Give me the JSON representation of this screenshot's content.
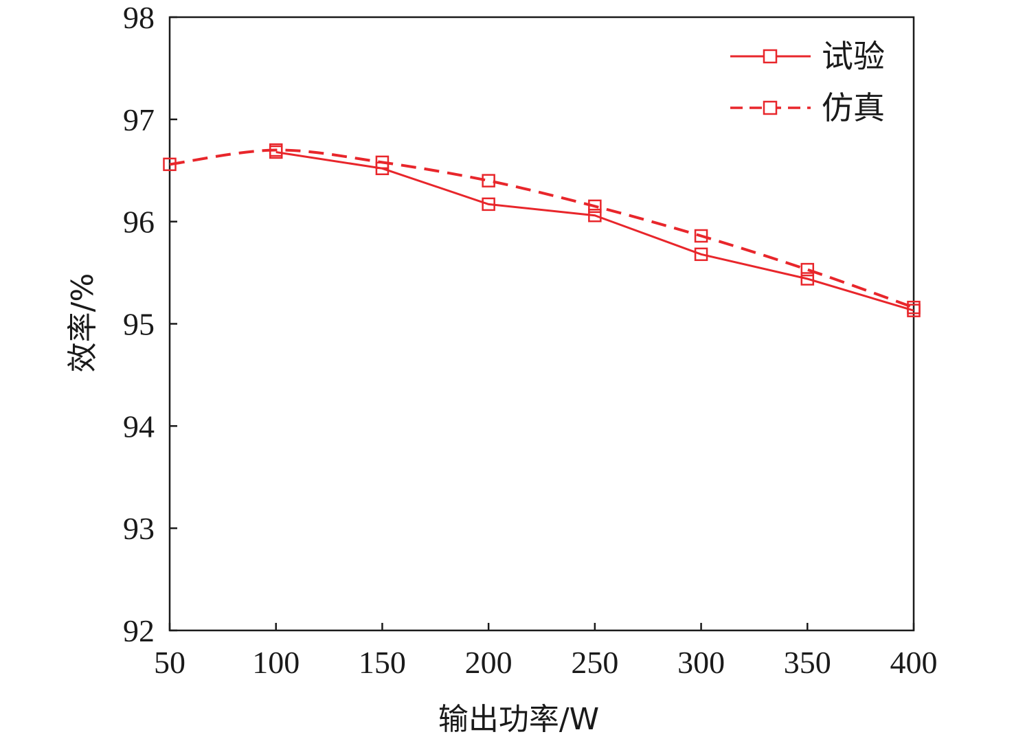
{
  "chart_data": {
    "type": "line",
    "title": "",
    "xlabel": "输出功率/W",
    "ylabel": "效率/%",
    "xlim": [
      50,
      400
    ],
    "ylim": [
      92,
      98
    ],
    "xticks": [
      50,
      100,
      150,
      200,
      250,
      300,
      350,
      400
    ],
    "yticks": [
      92,
      93,
      94,
      95,
      96,
      97,
      98
    ],
    "grid": false,
    "legend_position": "top-right",
    "color": "#e8262b",
    "series": [
      {
        "name": "试验",
        "style": "solid",
        "marker": "square",
        "x": [
          100,
          150,
          200,
          250,
          300,
          350,
          400
        ],
        "y": [
          96.68,
          96.52,
          96.17,
          96.06,
          95.68,
          95.44,
          95.13
        ]
      },
      {
        "name": "仿真",
        "style": "dashed",
        "marker": "square",
        "x": [
          50,
          100,
          150,
          200,
          250,
          300,
          350,
          400
        ],
        "y": [
          96.56,
          96.7,
          96.58,
          96.4,
          96.15,
          95.86,
          95.53,
          95.16
        ]
      }
    ]
  }
}
